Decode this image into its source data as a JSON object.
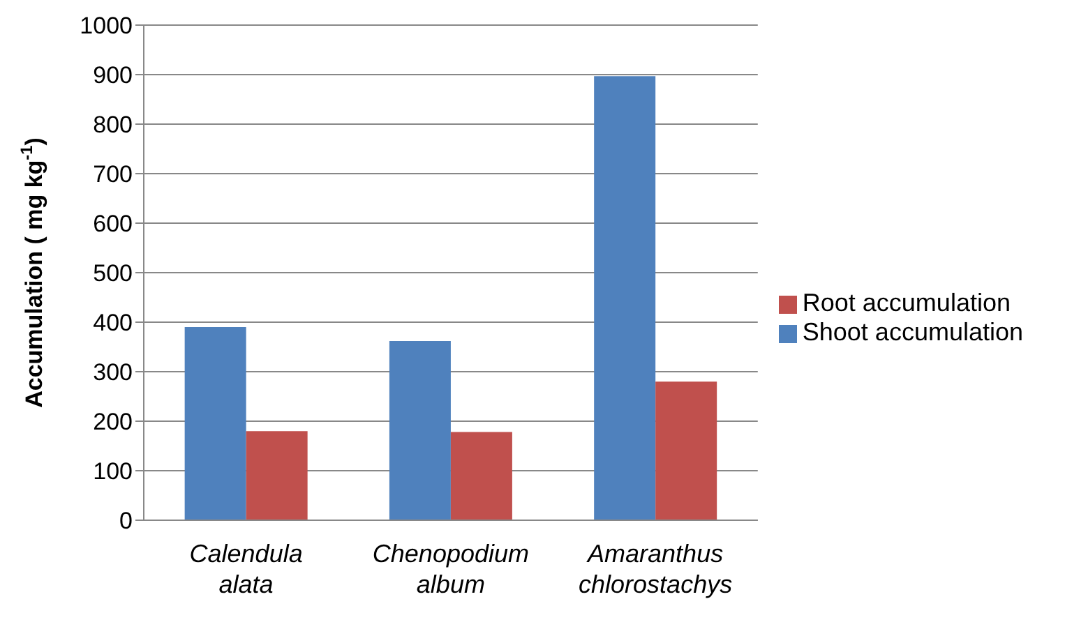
{
  "chart_data": {
    "type": "bar",
    "ylabel": "Accumulation ( mg kg$^{-1}$)",
    "categories": [
      "Calendula alata",
      "Chenopodium album",
      "Amaranthus chlorostachys"
    ],
    "series": [
      {
        "name": "Shoot accumulation",
        "color": "#4f81bd",
        "values": [
          390,
          362,
          897
        ]
      },
      {
        "name": "Root accumulation",
        "color": "#c0504d",
        "values": [
          180,
          178,
          280
        ]
      }
    ],
    "ylim": [
      0,
      1000
    ],
    "yticks": [
      0,
      100,
      200,
      300,
      400,
      500,
      600,
      700,
      800,
      900,
      1000
    ],
    "grid": "y",
    "legend": "right"
  }
}
